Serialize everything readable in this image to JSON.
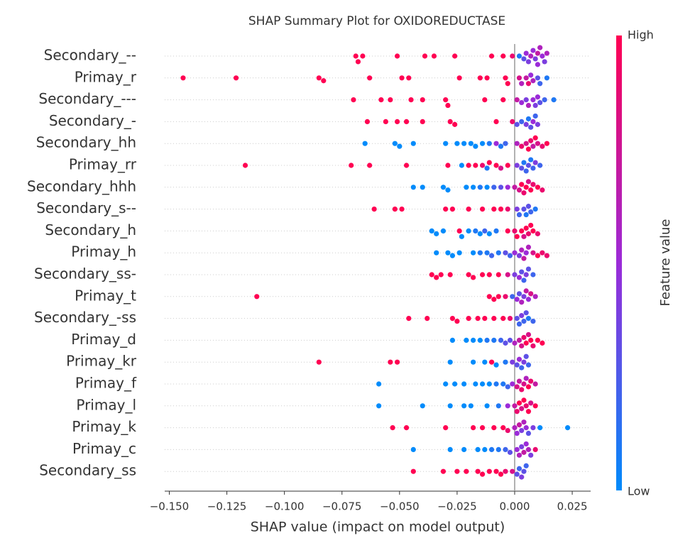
{
  "chart_data": {
    "type": "beeswarm",
    "title": "SHAP Summary Plot for OXIDOREDUCTASE",
    "x_label": "SHAP value (impact on model output)",
    "xlim": [
      -0.152,
      0.033
    ],
    "xticks": [
      {
        "value": -0.15,
        "label": "−0.150"
      },
      {
        "value": -0.125,
        "label": "−0.125"
      },
      {
        "value": -0.1,
        "label": "−0.100"
      },
      {
        "value": -0.075,
        "label": "−0.075"
      },
      {
        "value": -0.05,
        "label": "−0.050"
      },
      {
        "value": -0.025,
        "label": "−0.025"
      },
      {
        "value": 0,
        "label": "0.000"
      },
      {
        "value": 0.025,
        "label": "0.025"
      }
    ],
    "reference_line": 0,
    "colorbar": {
      "label": "Feature value",
      "high": "High",
      "low": "Low",
      "colors": [
        "#008bfb",
        "#9b2bd8",
        "#ff0052"
      ]
    },
    "series": [
      {
        "name": "Secondary_--",
        "values": [
          -0.069,
          -0.068,
          -0.066,
          -0.051,
          -0.039,
          -0.035,
          -0.026,
          -0.01,
          -0.005,
          -0.001,
          0.002,
          0.004,
          0.005,
          0.006,
          0.007,
          0.008,
          0.009,
          0.01,
          0.01,
          0.011,
          0.012,
          0.013,
          0.014
        ],
        "feature_values": [
          1,
          1,
          1,
          1,
          1,
          1,
          1,
          1,
          1,
          0.9,
          0.1,
          0.3,
          0.5,
          0.4,
          0.6,
          0.5,
          0.4,
          0.7,
          0.5,
          0.6,
          0.5,
          0.4,
          0.6
        ]
      },
      {
        "name": "Primay_r",
        "values": [
          -0.144,
          -0.121,
          -0.085,
          -0.083,
          -0.063,
          -0.049,
          -0.046,
          -0.024,
          -0.015,
          -0.012,
          -0.004,
          -0.003,
          0.002,
          0.003,
          0.005,
          0.006,
          0.007,
          0.008,
          0.01,
          0.011,
          0.014
        ],
        "feature_values": [
          1,
          1,
          1,
          1,
          1,
          1,
          1,
          1,
          1,
          1,
          1,
          1,
          0.8,
          0.6,
          0.7,
          0.9,
          0.5,
          0.6,
          0.3,
          0.2,
          0.1
        ]
      },
      {
        "name": "Secondary_---",
        "values": [
          -0.07,
          -0.058,
          -0.054,
          -0.045,
          -0.04,
          -0.03,
          -0.029,
          -0.013,
          -0.005,
          0.001,
          0.003,
          0.005,
          0.006,
          0.008,
          0.009,
          0.01,
          0.011,
          0.013,
          0.017
        ],
        "feature_values": [
          1,
          1,
          1,
          1,
          1,
          1,
          1,
          1,
          1,
          0.7,
          0.5,
          0.4,
          0.6,
          0.5,
          0.4,
          0.5,
          0.3,
          0.2,
          0.1
        ]
      },
      {
        "name": "Secondary_-",
        "values": [
          -0.064,
          -0.056,
          -0.051,
          -0.047,
          -0.04,
          -0.028,
          -0.026,
          -0.008,
          -0.001,
          0.001,
          0.003,
          0.005,
          0.006,
          0.007,
          0.008,
          0.009,
          0.01
        ],
        "feature_values": [
          1,
          1,
          1,
          1,
          1,
          1,
          1,
          1,
          0.9,
          0.3,
          0.2,
          0.4,
          0.1,
          0.3,
          0.5,
          0.2,
          0.4
        ]
      },
      {
        "name": "Secondary_hh",
        "values": [
          -0.065,
          -0.052,
          -0.05,
          -0.044,
          -0.03,
          -0.025,
          -0.022,
          -0.019,
          -0.017,
          -0.014,
          -0.011,
          -0.008,
          -0.006,
          -0.004,
          0.001,
          0.003,
          0.005,
          0.006,
          0.007,
          0.008,
          0.009,
          0.01,
          0.012,
          0.014
        ],
        "feature_values": [
          0,
          0,
          0,
          0,
          0,
          0,
          0,
          0,
          0,
          0,
          0.1,
          0.5,
          0.1,
          0.2,
          0.6,
          0.9,
          0.8,
          1,
          0.9,
          0.7,
          1,
          0.8,
          0.9,
          1
        ]
      },
      {
        "name": "Primay_rr",
        "values": [
          -0.117,
          -0.071,
          -0.063,
          -0.047,
          -0.029,
          -0.023,
          -0.02,
          -0.017,
          -0.014,
          -0.012,
          -0.011,
          -0.008,
          -0.006,
          -0.003,
          0.001,
          0.003,
          0.004,
          0.005,
          0.006,
          0.007,
          0.008,
          0.009,
          0.011
        ],
        "feature_values": [
          1,
          1,
          1,
          1,
          1,
          0,
          1,
          1,
          0.9,
          0.1,
          1,
          1,
          0.8,
          1,
          0.4,
          0.3,
          0.1,
          0.2,
          0.3,
          0.1,
          0.2,
          0.4,
          0.2
        ]
      },
      {
        "name": "Secondary_hhh",
        "values": [
          -0.044,
          -0.04,
          -0.031,
          -0.029,
          -0.021,
          -0.018,
          -0.015,
          -0.012,
          -0.009,
          -0.006,
          -0.003,
          0.0,
          0.002,
          0.003,
          0.004,
          0.005,
          0.006,
          0.007,
          0.008,
          0.01,
          0.012
        ],
        "feature_values": [
          0,
          0,
          0,
          0,
          0,
          0,
          0.1,
          0,
          0.2,
          0.3,
          0.5,
          0.7,
          0.8,
          1,
          0.9,
          1,
          0.8,
          1,
          0.9,
          1,
          0.9
        ]
      },
      {
        "name": "Secondary_s--",
        "values": [
          -0.061,
          -0.052,
          -0.049,
          -0.03,
          -0.027,
          -0.02,
          -0.014,
          -0.009,
          -0.006,
          -0.003,
          0.001,
          0.002,
          0.004,
          0.005,
          0.006,
          0.007,
          0.009
        ],
        "feature_values": [
          1,
          1,
          1,
          1,
          1,
          1,
          1,
          1,
          1,
          0.9,
          0.4,
          0.2,
          0.3,
          0.1,
          0.3,
          0.2,
          0.1
        ]
      },
      {
        "name": "Secondary_h",
        "values": [
          -0.036,
          -0.034,
          -0.031,
          -0.024,
          -0.023,
          -0.02,
          -0.017,
          -0.015,
          -0.013,
          -0.011,
          -0.008,
          -0.003,
          0.0,
          0.001,
          0.003,
          0.004,
          0.005,
          0.006,
          0.007,
          0.008,
          0.01
        ],
        "feature_values": [
          0,
          0,
          0,
          1,
          0,
          0,
          0.1,
          0,
          0.2,
          0,
          0.1,
          1,
          0.9,
          1,
          1,
          0.8,
          1,
          0.9,
          1,
          1,
          0.9
        ]
      },
      {
        "name": "Primay_h",
        "values": [
          -0.034,
          -0.029,
          -0.027,
          -0.024,
          -0.018,
          -0.015,
          -0.012,
          -0.01,
          -0.007,
          -0.004,
          -0.002,
          0.0,
          0.002,
          0.003,
          0.004,
          0.005,
          0.006,
          0.008,
          0.01,
          0.012,
          0.014
        ],
        "feature_values": [
          0,
          0,
          0,
          0,
          0,
          0.1,
          0.1,
          0.2,
          0.1,
          0.3,
          0.2,
          0.5,
          0.4,
          0.6,
          0.7,
          0.5,
          0.6,
          0.8,
          1,
          0.9,
          0.9
        ]
      },
      {
        "name": "Secondary_ss-",
        "values": [
          -0.036,
          -0.034,
          -0.032,
          -0.028,
          -0.02,
          -0.018,
          -0.014,
          -0.011,
          -0.007,
          -0.003,
          0.0,
          0.002,
          0.003,
          0.004,
          0.005,
          0.006,
          0.008
        ],
        "feature_values": [
          1,
          1,
          1,
          1,
          1,
          1,
          1,
          1,
          1,
          0.8,
          0.4,
          0.5,
          0.3,
          0.2,
          0.4,
          0.3,
          0.2
        ]
      },
      {
        "name": "Primay_t",
        "values": [
          -0.112,
          -0.011,
          -0.009,
          -0.007,
          -0.004,
          -0.001,
          0.001,
          0.002,
          0.003,
          0.004,
          0.005,
          0.006,
          0.007,
          0.009
        ],
        "feature_values": [
          1,
          1,
          1,
          1,
          0.9,
          0.2,
          0.5,
          0.3,
          0.6,
          0.4,
          0.7,
          0.5,
          0.8,
          0.6
        ]
      },
      {
        "name": "Secondary_-ss",
        "values": [
          -0.046,
          -0.038,
          -0.027,
          -0.025,
          -0.02,
          -0.016,
          -0.013,
          -0.009,
          -0.005,
          -0.002,
          0.001,
          0.002,
          0.003,
          0.004,
          0.005,
          0.006,
          0.008
        ],
        "feature_values": [
          1,
          1,
          1,
          1,
          1,
          1,
          1,
          1,
          1,
          0.9,
          0.3,
          0.2,
          0.4,
          0.2,
          0.3,
          0.1,
          0.2
        ]
      },
      {
        "name": "Primay_d",
        "values": [
          -0.027,
          -0.021,
          -0.018,
          -0.015,
          -0.012,
          -0.009,
          -0.006,
          -0.004,
          -0.002,
          0.0,
          0.002,
          0.003,
          0.004,
          0.005,
          0.006,
          0.007,
          0.008,
          0.01,
          0.012
        ],
        "feature_values": [
          0,
          0,
          0,
          0,
          0.1,
          0.1,
          0.2,
          0.3,
          0.3,
          0.6,
          0.7,
          0.8,
          0.9,
          1,
          0.8,
          1,
          0.9,
          1,
          1
        ]
      },
      {
        "name": "Primay_kr",
        "values": [
          -0.085,
          -0.054,
          -0.051,
          -0.028,
          -0.018,
          -0.013,
          -0.01,
          -0.008,
          -0.004,
          -0.001,
          0.001,
          0.002,
          0.003,
          0.004,
          0.005,
          0.006
        ],
        "feature_values": [
          1,
          1,
          1,
          0,
          0,
          0,
          1,
          0,
          0.1,
          0.4,
          0.3,
          0.5,
          0.2,
          0.4,
          0.3,
          0.2
        ]
      },
      {
        "name": "Primay_f",
        "values": [
          -0.059,
          -0.03,
          -0.026,
          -0.022,
          -0.017,
          -0.014,
          -0.011,
          -0.008,
          -0.005,
          -0.003,
          -0.001,
          0.001,
          0.002,
          0.003,
          0.004,
          0.005,
          0.006,
          0.007,
          0.009
        ],
        "feature_values": [
          0,
          0,
          0,
          0,
          0,
          0,
          0,
          0.1,
          0.1,
          0.2,
          0.5,
          0.8,
          0.7,
          0.9,
          0.8,
          0.6,
          1,
          0.9,
          0.7
        ]
      },
      {
        "name": "Primay_l",
        "values": [
          -0.059,
          -0.04,
          -0.028,
          -0.022,
          -0.019,
          -0.012,
          -0.007,
          -0.003,
          0.0,
          0.001,
          0.002,
          0.003,
          0.004,
          0.005,
          0.006,
          0.007,
          0.009
        ],
        "feature_values": [
          0,
          0,
          0,
          0,
          0,
          0,
          0.1,
          0.5,
          0.7,
          0.9,
          1,
          0.8,
          1,
          0.9,
          1,
          0.8,
          1
        ]
      },
      {
        "name": "Primay_k",
        "values": [
          -0.053,
          -0.047,
          -0.03,
          -0.018,
          -0.014,
          -0.009,
          -0.005,
          -0.003,
          0.0,
          0.001,
          0.002,
          0.003,
          0.004,
          0.005,
          0.006,
          0.008,
          0.011,
          0.023
        ],
        "feature_values": [
          1,
          1,
          1,
          1,
          1,
          1,
          1,
          0.9,
          0.6,
          0.5,
          0.7,
          0.4,
          0.6,
          0.5,
          0.3,
          0.4,
          0,
          0
        ]
      },
      {
        "name": "Primay_c",
        "values": [
          -0.044,
          -0.028,
          -0.022,
          -0.016,
          -0.013,
          -0.01,
          -0.007,
          -0.004,
          -0.002,
          0.001,
          0.002,
          0.003,
          0.004,
          0.005,
          0.006,
          0.007,
          0.009
        ],
        "feature_values": [
          0,
          0,
          0,
          0,
          0,
          0.1,
          0.1,
          0.2,
          0.3,
          0.5,
          0.6,
          0.4,
          0.7,
          0.5,
          0.6,
          0.4,
          0.9
        ]
      },
      {
        "name": "Secondary_ss",
        "values": [
          -0.044,
          -0.031,
          -0.025,
          -0.021,
          -0.016,
          -0.014,
          -0.011,
          -0.008,
          -0.006,
          -0.004,
          -0.001,
          0.001,
          0.002,
          0.003,
          0.004,
          0.005
        ],
        "feature_values": [
          1,
          1,
          1,
          1,
          1,
          1,
          1,
          1,
          1,
          0.9,
          0.8,
          0.3,
          0.2,
          0.4,
          0.3,
          0.2
        ]
      }
    ]
  }
}
